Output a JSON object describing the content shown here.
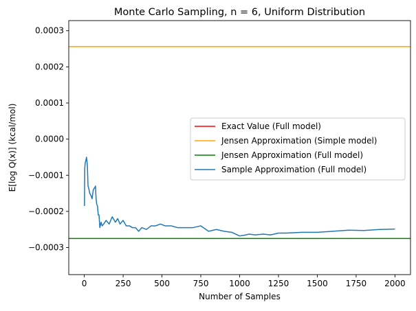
{
  "chart_data": {
    "type": "line",
    "title": "Monte Carlo Sampling, n = 6, Uniform Distribution",
    "xlabel": "Number of Samples",
    "ylabel": "E[log Q(x)] (kcal/mol)",
    "xlim": [
      -100,
      2100
    ],
    "ylim": [
      -0.000375,
      0.000328
    ],
    "xticks": [
      0,
      250,
      500,
      750,
      1000,
      1250,
      1500,
      1750,
      2000
    ],
    "xtick_labels": [
      "0",
      "250",
      "500",
      "750",
      "1000",
      "1250",
      "1500",
      "1750",
      "2000"
    ],
    "yticks": [
      -0.0003,
      -0.0002,
      -0.0001,
      0.0,
      0.0001,
      0.0002,
      0.0003
    ],
    "ytick_labels": [
      "−0.0003",
      "−0.0002",
      "−0.0001",
      "0.0000",
      "0.0001",
      "0.0002",
      "0.0003"
    ],
    "grid": false,
    "legend_position": "center-right",
    "series": [
      {
        "name": "Exact Value (Full model)",
        "kind": "hline",
        "y": null,
        "color": "#ff0000"
      },
      {
        "name": "Jensen Approximation (Simple model)",
        "kind": "hline",
        "y": 0.000256,
        "color": "#ffa500"
      },
      {
        "name": "Jensen Approximation (Full model)",
        "kind": "hline",
        "y": -0.000275,
        "color": "#008000"
      },
      {
        "name": "Sample Approximation (Full model)",
        "kind": "line",
        "color": "#1f77b4",
        "x": [
          1,
          3,
          6,
          10,
          14,
          17,
          20,
          24,
          28,
          35,
          42,
          50,
          58,
          66,
          72,
          76,
          80,
          85,
          90,
          95,
          100,
          108,
          115,
          125,
          140,
          160,
          180,
          200,
          215,
          230,
          250,
          270,
          290,
          310,
          330,
          350,
          370,
          400,
          430,
          460,
          490,
          520,
          560,
          600,
          650,
          700,
          750,
          800,
          850,
          900,
          950,
          1000,
          1030,
          1060,
          1100,
          1150,
          1200,
          1250,
          1300,
          1400,
          1500,
          1600,
          1700,
          1800,
          1900,
          2000
        ],
        "y": [
          -0.000185,
          -8e-05,
          -6.5e-05,
          -6e-05,
          -5e-05,
          -6e-05,
          -7.5e-05,
          -0.00013,
          -0.000135,
          -0.00015,
          -0.000155,
          -0.000165,
          -0.00014,
          -0.000135,
          -0.00013,
          -0.000165,
          -0.00018,
          -0.000185,
          -0.00021,
          -0.00021,
          -0.000245,
          -0.00023,
          -0.00024,
          -0.000235,
          -0.000225,
          -0.000235,
          -0.000215,
          -0.00023,
          -0.00022,
          -0.000235,
          -0.000225,
          -0.00024,
          -0.00024,
          -0.000245,
          -0.000245,
          -0.000255,
          -0.000245,
          -0.00025,
          -0.00024,
          -0.00024,
          -0.000235,
          -0.00024,
          -0.00024,
          -0.000245,
          -0.000245,
          -0.000245,
          -0.00024,
          -0.000255,
          -0.00025,
          -0.000255,
          -0.000258,
          -0.000268,
          -0.000266,
          -0.000263,
          -0.000265,
          -0.000263,
          -0.000265,
          -0.00026,
          -0.00026,
          -0.000258,
          -0.000258,
          -0.000255,
          -0.000252,
          -0.000253,
          -0.00025,
          -0.000249
        ]
      }
    ]
  }
}
